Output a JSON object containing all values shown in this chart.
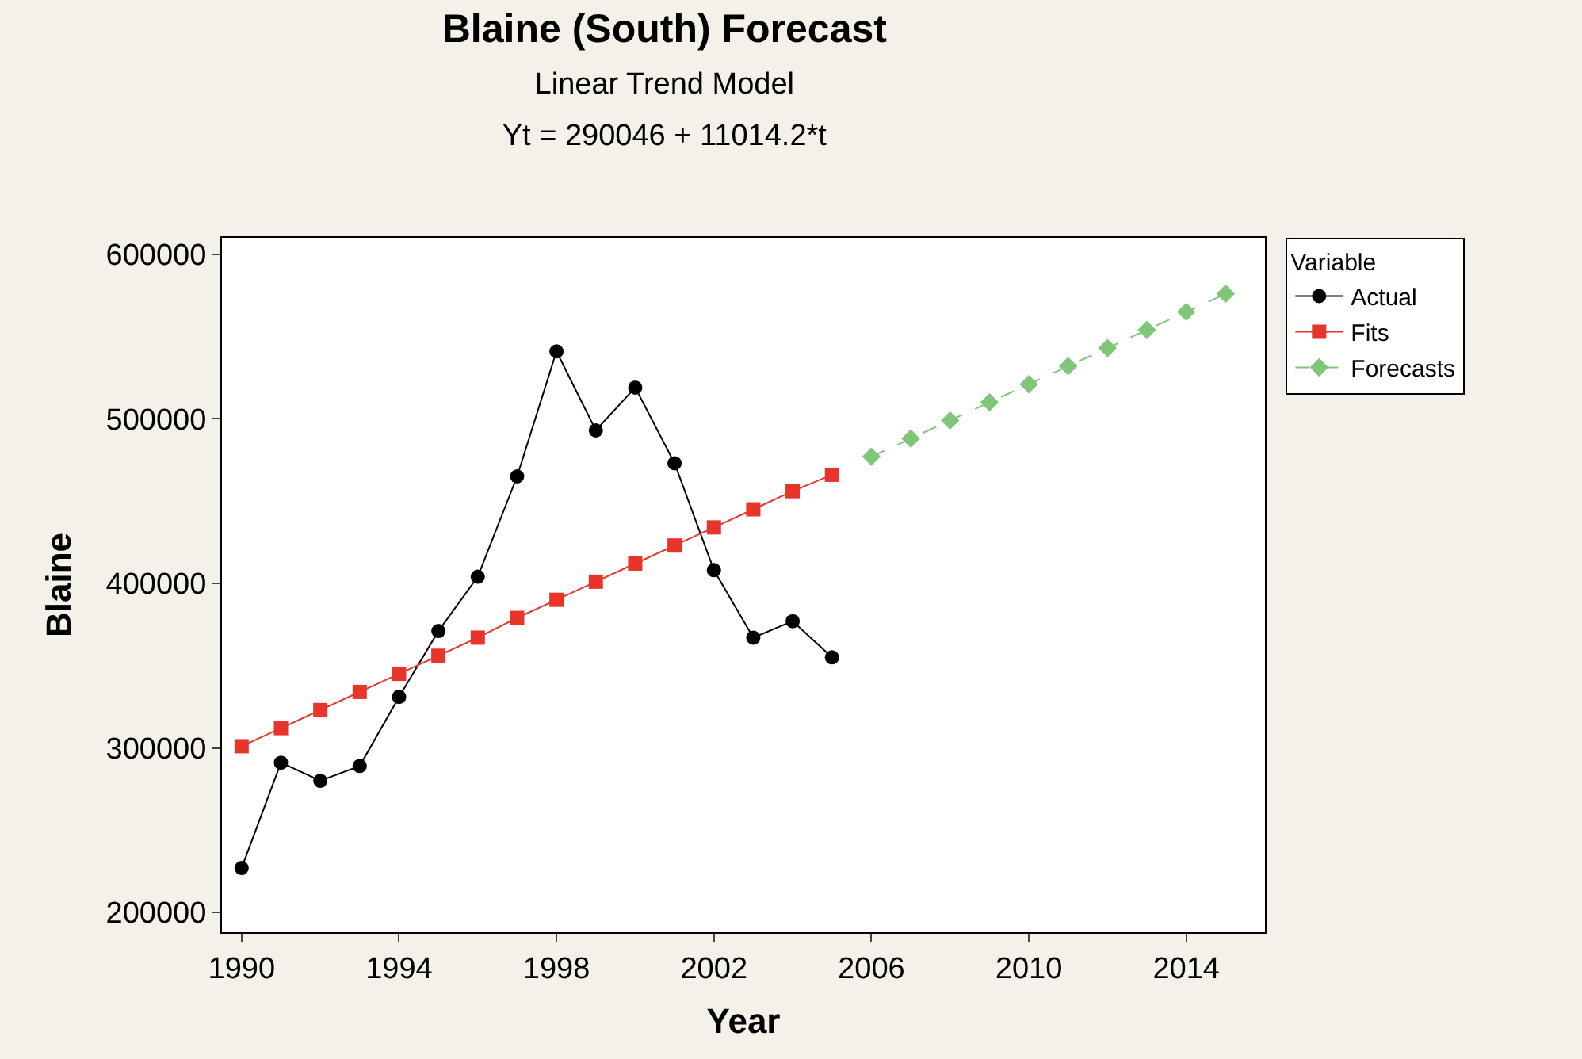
{
  "chart_data": {
    "type": "line",
    "title": "Blaine (South) Forecast",
    "subtitle": "Linear Trend Model\nYt = 290046 + 11014.2*t",
    "xlabel": "Year",
    "ylabel": "Blaine",
    "legend_title": "Variable",
    "series": [
      {
        "name": "Actual",
        "color": "#000000",
        "marker": "circle",
        "line_style": "solid",
        "x": [
          1990,
          1991,
          1992,
          1993,
          1994,
          1995,
          1996,
          1997,
          1998,
          1999,
          2000,
          2001,
          2002,
          2003,
          2004,
          2005
        ],
        "values": [
          227000,
          291000,
          280000,
          289000,
          331000,
          371000,
          404000,
          465000,
          541000,
          493000,
          519000,
          473000,
          408000,
          367000,
          377000,
          355000
        ]
      },
      {
        "name": "Fits",
        "color": "#e8352b",
        "marker": "square",
        "line_style": "solid",
        "x": [
          1990,
          1991,
          1992,
          1993,
          1994,
          1995,
          1996,
          1997,
          1998,
          1999,
          2000,
          2001,
          2002,
          2003,
          2004,
          2005
        ],
        "values": [
          301000,
          312000,
          323000,
          334000,
          345000,
          356000,
          367000,
          379000,
          390000,
          401000,
          412000,
          423000,
          434000,
          445000,
          456000,
          466000
        ]
      },
      {
        "name": "Forecasts",
        "color": "#7dc67a",
        "marker": "diamond",
        "line_style": "dashed",
        "x": [
          2006,
          2007,
          2008,
          2009,
          2010,
          2011,
          2012,
          2013,
          2014,
          2015
        ],
        "values": [
          477000,
          488000,
          499000,
          510000,
          521000,
          532000,
          543000,
          554000,
          565000,
          576000
        ]
      }
    ],
    "xlim": [
      1989.5,
      2016
    ],
    "xticks": [
      1990,
      1994,
      1998,
      2002,
      2006,
      2010,
      2014
    ],
    "ylim": [
      188000,
      610000
    ],
    "yticks": [
      200000,
      300000,
      400000,
      500000,
      600000
    ],
    "legend": "top right"
  }
}
